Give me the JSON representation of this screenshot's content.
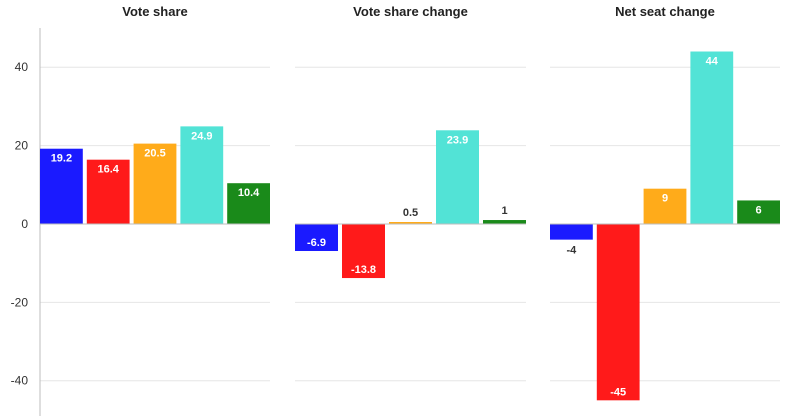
{
  "chart_data": [
    {
      "type": "bar",
      "title": "Vote share",
      "ylim": [
        -49,
        50
      ],
      "yticks": [
        40,
        20,
        0,
        -20,
        -40
      ],
      "series": [
        {
          "values": [
            19.2,
            16.4,
            20.5,
            24.9,
            10.4
          ]
        }
      ],
      "bar_colors": [
        "#1a1aff",
        "#ff1a1a",
        "#ffab1a",
        "#52e3d6",
        "#1a8a1a"
      ],
      "label_colors": [
        "#ffffff",
        "#ffffff",
        "#ffffff",
        "#ffffff",
        "#ffffff"
      ],
      "grid": true
    },
    {
      "type": "bar",
      "title": "Vote share change",
      "ylim": [
        -49,
        50
      ],
      "series": [
        {
          "values": [
            -6.9,
            -13.8,
            0.5,
            23.9,
            1
          ]
        }
      ],
      "bar_colors": [
        "#1a1aff",
        "#ff1a1a",
        "#ffab1a",
        "#52e3d6",
        "#1a8a1a"
      ],
      "label_colors": [
        "#ffffff",
        "#ffffff",
        "#333333",
        "#ffffff",
        "#333333"
      ],
      "grid": true
    },
    {
      "type": "bar",
      "title": "Net seat change",
      "ylim": [
        -49,
        50
      ],
      "series": [
        {
          "values": [
            -4,
            -45,
            9,
            44,
            6
          ]
        }
      ],
      "bar_colors": [
        "#1a1aff",
        "#ff1a1a",
        "#ffab1a",
        "#52e3d6",
        "#1a8a1a"
      ],
      "label_colors": [
        "#333333",
        "#ffffff",
        "#ffffff",
        "#ffffff",
        "#ffffff"
      ],
      "grid": true
    }
  ]
}
